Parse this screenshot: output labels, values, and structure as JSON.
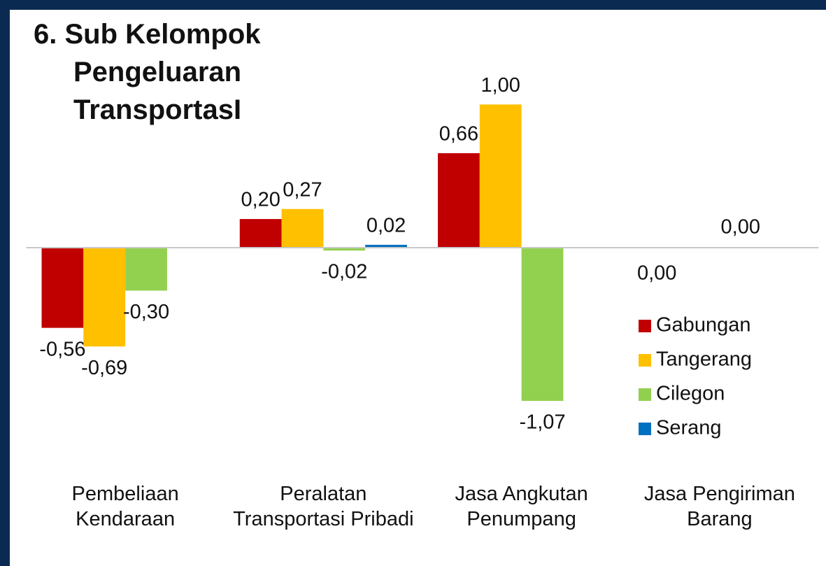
{
  "chart_data": {
    "type": "bar",
    "title": "6. Sub Kelompok Pengeluaran TransportasI",
    "categories": [
      "Pembeliaan Kendaraan",
      "Peralatan Transportasi Pribadi",
      "Jasa Angkutan Penumpang",
      "Jasa Pengiriman Barang"
    ],
    "series": [
      {
        "name": "Gabungan",
        "color": "#c00000",
        "values": [
          -0.56,
          0.2,
          0.66,
          0.0
        ],
        "value_labels": [
          "-0,56",
          "0,20",
          "0,66",
          "0,00"
        ]
      },
      {
        "name": "Tangerang",
        "color": "#ffc000",
        "values": [
          -0.69,
          0.27,
          1.0,
          null
        ],
        "value_labels": [
          "-0,69",
          "0,27",
          "1,00",
          null
        ]
      },
      {
        "name": "Cilegon",
        "color": "#92d050",
        "values": [
          -0.3,
          -0.02,
          -1.07,
          0.0
        ],
        "value_labels": [
          "-0,30",
          "-0,02",
          "-1,07",
          "0,00"
        ]
      },
      {
        "name": "Serang",
        "color": "#0070c0",
        "values": [
          null,
          0.02,
          null,
          null
        ],
        "value_labels": [
          null,
          "0,02",
          null,
          null
        ]
      }
    ],
    "ylim": [
      -1.5,
      1.5
    ],
    "legend": "right"
  }
}
